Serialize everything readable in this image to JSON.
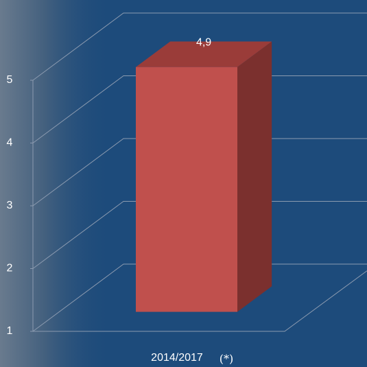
{
  "chart_data": {
    "type": "bar3d",
    "categories": [
      "2014/2017"
    ],
    "category_note": "(*)",
    "values": [
      4.9
    ],
    "value_labels": [
      "4,9"
    ],
    "color": "#c0504d",
    "ylim": [
      1,
      5
    ],
    "yticks": [
      1,
      2,
      3,
      4,
      5
    ],
    "grid": true
  }
}
